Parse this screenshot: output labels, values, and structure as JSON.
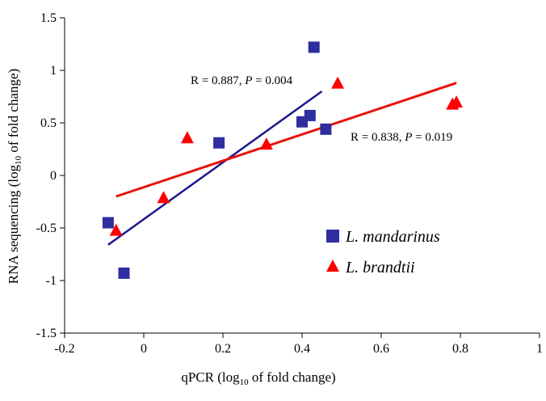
{
  "chart_data": {
    "type": "scatter",
    "title": "",
    "xlabel": {
      "prefix": "qPCR (log",
      "sub": "10",
      "suffix": " of fold change)"
    },
    "ylabel": {
      "prefix": "RNA sequencing (log",
      "sub": "10",
      "suffix": " of fold change)"
    },
    "xlim": [
      -0.2,
      1.0
    ],
    "ylim": [
      -1.5,
      1.5
    ],
    "xticks": [
      -0.2,
      0,
      0.2,
      0.4,
      0.6,
      0.8,
      1.0
    ],
    "xtick_labels": [
      "-0.2",
      "0",
      "0.2",
      "0.4",
      "0.6",
      "0.8",
      "1"
    ],
    "yticks": [
      -1.5,
      -1.0,
      -0.5,
      0,
      0.5,
      1.0,
      1.5
    ],
    "ytick_labels": [
      "-1.5",
      "-1",
      "-0.5",
      "0",
      "0.5",
      "1",
      "1.5"
    ],
    "grid": false,
    "legend_position": "lower-right",
    "series": [
      {
        "name": "L. mandarinus",
        "marker": "square",
        "color": "#2E2E9E",
        "points": [
          {
            "x": -0.09,
            "y": -0.45
          },
          {
            "x": -0.05,
            "y": -0.93
          },
          {
            "x": 0.19,
            "y": 0.31
          },
          {
            "x": 0.4,
            "y": 0.51
          },
          {
            "x": 0.42,
            "y": 0.57
          },
          {
            "x": 0.43,
            "y": 1.22
          },
          {
            "x": 0.46,
            "y": 0.44
          }
        ],
        "fit": {
          "x": [
            -0.09,
            0.45
          ],
          "y": [
            -0.66,
            0.8
          ],
          "color": "#1F1A8C"
        }
      },
      {
        "name": "L. brandtii",
        "marker": "triangle",
        "color": "#FF0000",
        "points": [
          {
            "x": -0.07,
            "y": -0.52
          },
          {
            "x": 0.05,
            "y": -0.21
          },
          {
            "x": 0.11,
            "y": 0.36
          },
          {
            "x": 0.31,
            "y": 0.3
          },
          {
            "x": 0.49,
            "y": 0.88
          },
          {
            "x": 0.78,
            "y": 0.68
          },
          {
            "x": 0.79,
            "y": 0.7
          }
        ],
        "fit": {
          "x": [
            -0.07,
            0.79
          ],
          "y": [
            -0.2,
            0.88
          ],
          "color": "#E8120C"
        }
      }
    ],
    "annotations": [
      {
        "series": "L. mandarinus",
        "r_text": "R = 0.887, ",
        "p_label": "P",
        "p_text": " = 0.004"
      },
      {
        "series": "L. brandtii",
        "r_text": "R = 0.838, ",
        "p_label": "P",
        "p_text": " = 0.019"
      }
    ]
  }
}
